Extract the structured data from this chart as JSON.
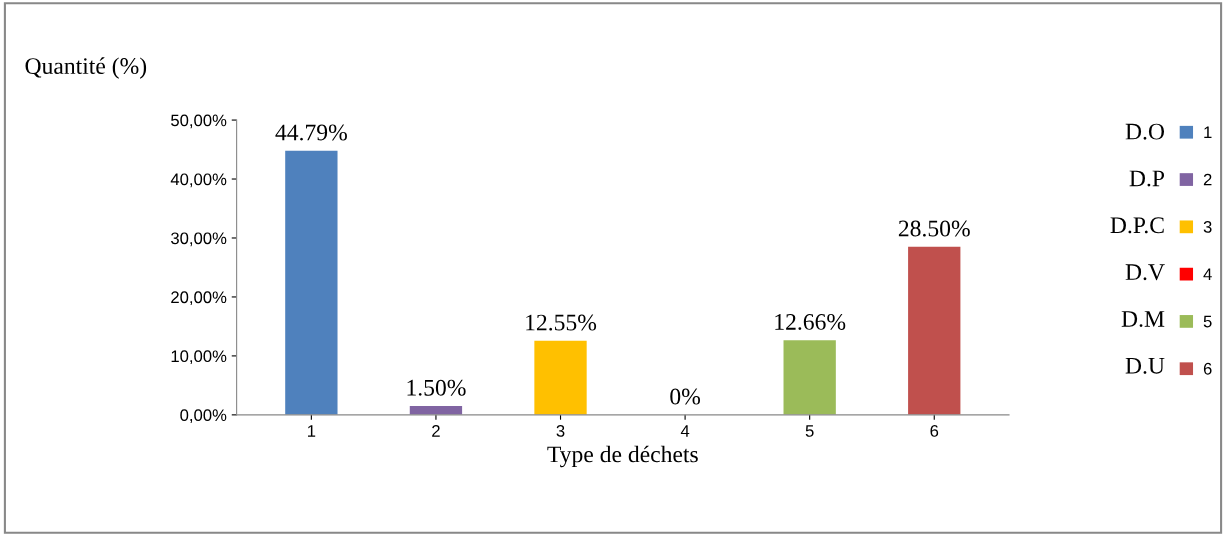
{
  "chart_data": {
    "type": "bar",
    "ylabel": "Quantité (%)",
    "xlabel": "Type de déchets",
    "categories": [
      "1",
      "2",
      "3",
      "4",
      "5",
      "6"
    ],
    "series": [
      {
        "name": "1",
        "color": "#4f81bd",
        "values": [
          44.79,
          null,
          null,
          null,
          null,
          null
        ],
        "value_labels": [
          "44.79%",
          null,
          null,
          null,
          null,
          null
        ]
      },
      {
        "name": "2",
        "color": "#8064a2",
        "values": [
          null,
          1.5,
          null,
          null,
          null,
          null
        ],
        "value_labels": [
          null,
          "1.50%",
          null,
          null,
          null,
          null
        ]
      },
      {
        "name": "3",
        "color": "#ffc000",
        "values": [
          null,
          null,
          12.55,
          null,
          null,
          null
        ],
        "value_labels": [
          null,
          null,
          "12.55%",
          null,
          null,
          null
        ]
      },
      {
        "name": "4",
        "color": "#ff0000",
        "values": [
          null,
          null,
          null,
          0,
          null,
          null
        ],
        "value_labels": [
          null,
          null,
          null,
          "0%",
          null,
          null
        ]
      },
      {
        "name": "5",
        "color": "#9bbb59",
        "values": [
          null,
          null,
          null,
          null,
          12.66,
          null
        ],
        "value_labels": [
          null,
          null,
          null,
          null,
          "12.66%",
          null
        ]
      },
      {
        "name": "6",
        "color": "#c0504d",
        "values": [
          null,
          null,
          null,
          null,
          null,
          28.5
        ],
        "value_labels": [
          null,
          null,
          null,
          null,
          null,
          "28.50%"
        ]
      }
    ],
    "ylim": [
      0,
      50
    ],
    "yticks": [
      {
        "value": 0,
        "label": "0,00%"
      },
      {
        "value": 10,
        "label": "10,00%"
      },
      {
        "value": 20,
        "label": "20,00%"
      },
      {
        "value": 30,
        "label": "30,00%"
      },
      {
        "value": 40,
        "label": "40,00%"
      },
      {
        "value": 50,
        "label": "50,00%"
      }
    ],
    "grid": false,
    "legend": "right",
    "annotations": [
      "D.O",
      "D.P",
      "D.P.C",
      "D.V",
      "D.M",
      "D.U"
    ]
  }
}
